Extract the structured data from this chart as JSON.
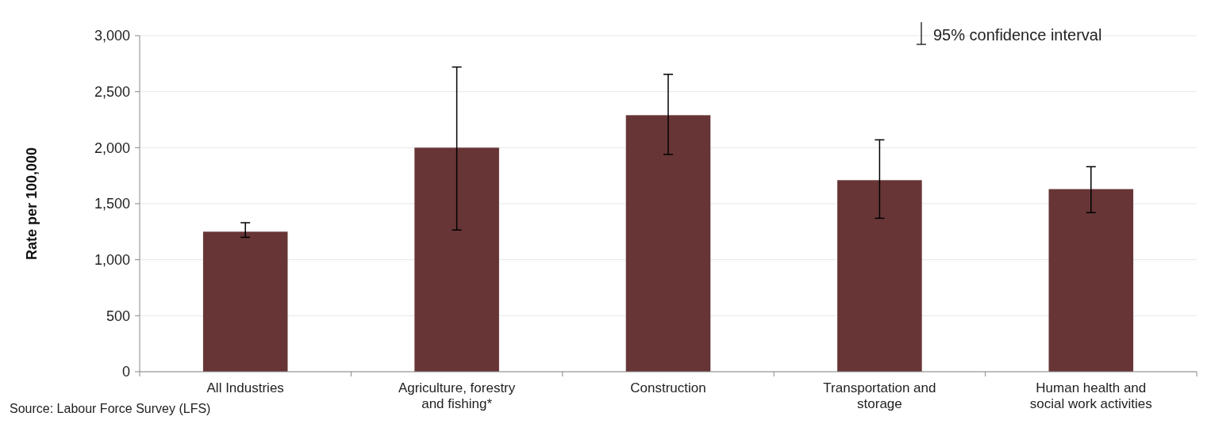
{
  "chart_data": {
    "type": "bar",
    "ylabel": "Rate per 100,000",
    "categories": [
      "All Industries",
      "Agriculture, forestry and fishing*",
      "Construction",
      "Transportation and storage",
      "Human health and social work activities"
    ],
    "values": [
      1250,
      2000,
      2290,
      1710,
      1630
    ],
    "errors": [
      [
        1200,
        1330
      ],
      [
        1265,
        2720
      ],
      [
        1940,
        2655
      ],
      [
        1370,
        2070
      ],
      [
        1420,
        1830
      ]
    ],
    "color": "#673536",
    "ylim": [
      0,
      3000
    ],
    "yticks": [
      {
        "value": 0,
        "label": "0"
      },
      {
        "value": 500,
        "label": "500"
      },
      {
        "value": 1000,
        "label": "1,000"
      },
      {
        "value": 1500,
        "label": "1,500"
      },
      {
        "value": 2000,
        "label": "2,000"
      },
      {
        "value": 2500,
        "label": "2,500"
      },
      {
        "value": 3000,
        "label": "3,000"
      }
    ],
    "grid": "y",
    "annotations": [
      "95% confidence interval",
      "Source: Labour Force Survey (LFS)"
    ]
  }
}
